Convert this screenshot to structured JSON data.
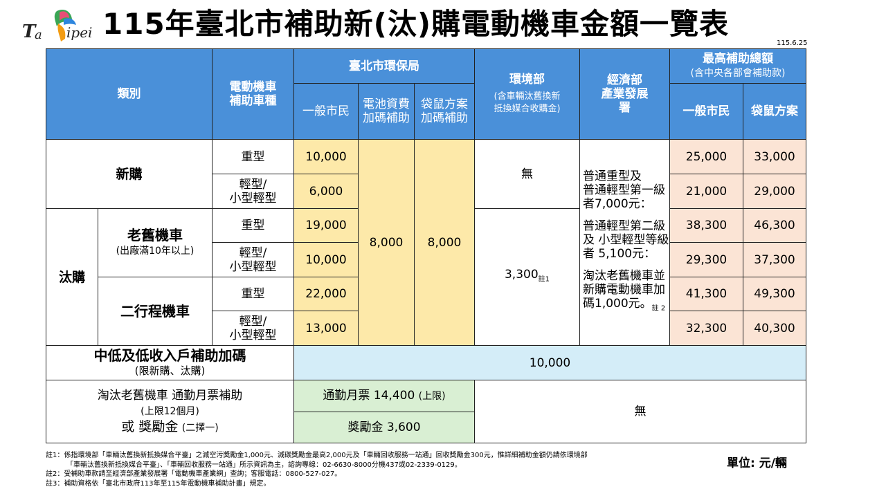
{
  "logo_text": "T.Taipei",
  "title": "115年臺北市補助新(汰)購電動機車金額一覽表",
  "date": "115.6.25",
  "header": {
    "category": "類別",
    "vehicle_type": [
      "電動機車",
      "補助車種"
    ],
    "epb": "臺北市環保局",
    "epb_general": "一般市民",
    "epb_battery": [
      "電池資費",
      "加碼補助"
    ],
    "epb_kangaroo": [
      "袋鼠方案",
      "加碼補助"
    ],
    "moenv": "環境部",
    "moenv_sub": [
      "(含車輛汰舊換新",
      "抵換媒合收購金)"
    ],
    "moea": [
      "經濟部",
      "產業發展",
      "署"
    ],
    "max_total": "最高補助總額",
    "max_total_sub": "(含中央各部會補助款)",
    "max_general": "一般市民",
    "max_kangaroo": "袋鼠方案"
  },
  "categories": {
    "new": "新購",
    "replace": "汰購",
    "old": "老舊機車",
    "old_sub": "(出廠滿10年以上)",
    "two_stroke": "二行程機車"
  },
  "types": {
    "heavy": "重型",
    "light": [
      "輕型/",
      "小型輕型"
    ]
  },
  "rows": [
    {
      "general": "10,000",
      "max_general": "25,000",
      "max_kangaroo": "33,000"
    },
    {
      "general": "6,000",
      "max_general": "21,000",
      "max_kangaroo": "29,000"
    },
    {
      "general": "19,000",
      "max_general": "38,300",
      "max_kangaroo": "46,300"
    },
    {
      "general": "10,000",
      "max_general": "29,300",
      "max_kangaroo": "37,300"
    },
    {
      "general": "22,000",
      "max_general": "41,300",
      "max_kangaroo": "49,300"
    },
    {
      "general": "13,000",
      "max_general": "32,300",
      "max_kangaroo": "40,300"
    }
  ],
  "battery_bonus": "8,000",
  "kangaroo_bonus": "8,000",
  "moenv_new": "無",
  "moenv_replace": "3,300",
  "moenv_replace_note": "註1",
  "moea_text": [
    "普通重型及",
    "普通輕型第一級",
    "者7,000元：",
    "普通輕型第二級",
    "及 小型輕型等級",
    "者 5,100元：",
    "淘汰老舊機車並",
    "新購電動機車加",
    "碼1,000元。"
  ],
  "moea_note": "註 2",
  "low_income": {
    "label": "中低及低收入戶補助加碼",
    "sub": "(限新購、汰購)",
    "value": "10,000"
  },
  "commute": {
    "label_a": "淘汰老舊機車 通勤月票補助",
    "label_b": "(上限12個月)",
    "label_c": "或 獎勵金",
    "label_d": "(二擇一)",
    "pass": "通勤月票 14,400",
    "pass_limit": "(上限)",
    "bonus": "獎勵金 3,600",
    "other": "無"
  },
  "notes": [
    "註1：係指環境部「車輛汰舊換新抵換媒合平臺」之減空污獎勵金1,000元、減碳獎勵金最高2,000元及「車輛回收服務一站通」回收獎勵金300元，惟詳細補助金額仍請依環境部",
    "「車輛汰舊換新抵換媒合平臺」、「車輛回收服務一站通」所示資訊為主，諮詢專線：02-6630-8000分機437或02-2339-0129。",
    "註2：受補助車款請至經濟部產業發展署「電動機車產業網」查詢；客服電話：0800-527-027。",
    "註3：補助資格依「臺北市政府113年至115年電動機車補助計畫」規定。"
  ],
  "unit": "單位: 元/輛",
  "colors": {
    "header": "#4a90d9",
    "yellow": "#fde9a9",
    "pink": "#fbe4d5",
    "blue": "#d4edf8",
    "green": "#d9efd3"
  }
}
